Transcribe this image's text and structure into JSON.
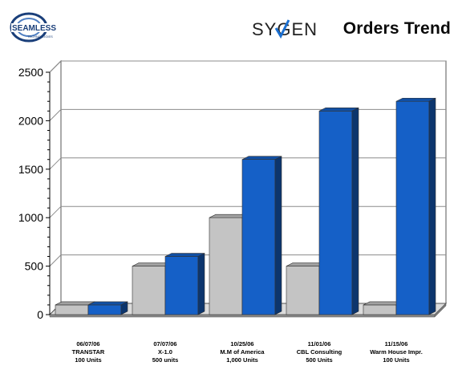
{
  "header": {
    "left_logo_text": "SEAMLESS",
    "left_logo_subtext": "TECHNOLOGIES",
    "brand_name": "SYGEN",
    "title": "Orders Trend"
  },
  "colors": {
    "gray_bar": "#c4c4c4",
    "blue_bar": "#1560c7",
    "grid": "#8c8c8c",
    "text": "#000000",
    "brand_blue": "#1a4f9b"
  },
  "chart_data": {
    "type": "bar",
    "categories": [
      [
        "06/07/06",
        "TRANSTAR",
        "100 Units"
      ],
      [
        "07/07/06",
        "X-1.0",
        "500 units"
      ],
      [
        "10/25/06",
        "M.M of America",
        "1,000 Units"
      ],
      [
        "11/01/06",
        "CBL Consulting",
        "500 Units"
      ],
      [
        "11/15/06",
        "Warm House Impr.",
        "100 Units"
      ]
    ],
    "series": [
      {
        "values": [
          100,
          500,
          1000,
          500,
          100
        ]
      },
      {
        "values": [
          100,
          600,
          1600,
          2100,
          2200
        ]
      }
    ],
    "ylim": [
      0,
      2500
    ],
    "yticks": [
      0,
      500,
      1000,
      1500,
      2000,
      2500
    ],
    "grid": true,
    "style": "3d"
  }
}
